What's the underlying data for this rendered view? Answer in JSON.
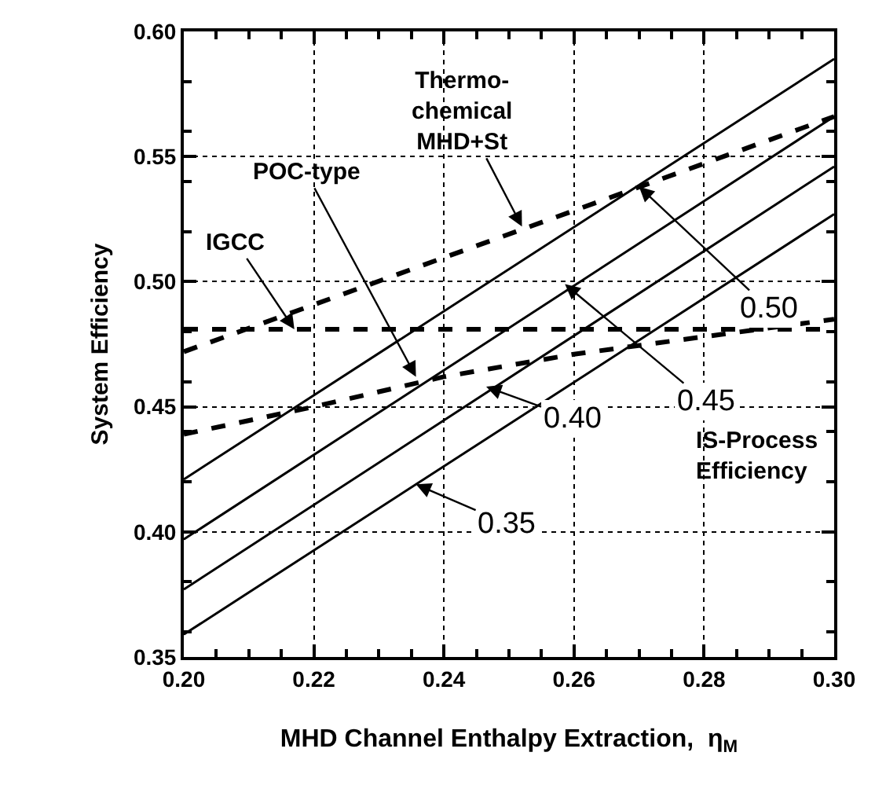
{
  "chart_data": {
    "type": "line",
    "xlabel": "MHD Channel Enthalpy Extraction,  η$_{M}$",
    "ylabel": "System Efficiency",
    "xlim": [
      0.2,
      0.3
    ],
    "xticks": [
      {
        "value": 0.2,
        "label": "0.20"
      },
      {
        "value": 0.22,
        "label": "0.22"
      },
      {
        "value": 0.24,
        "label": "0.24"
      },
      {
        "value": 0.26,
        "label": "0.26"
      },
      {
        "value": 0.28,
        "label": "0.28"
      },
      {
        "value": 0.3,
        "label": "0.30"
      }
    ],
    "ylim": [
      0.35,
      0.6
    ],
    "yticks": [
      {
        "value": 0.35,
        "label": "0.35"
      },
      {
        "value": 0.4,
        "label": "0.40"
      },
      {
        "value": 0.45,
        "label": "0.45"
      },
      {
        "value": 0.5,
        "label": "0.50"
      },
      {
        "value": 0.55,
        "label": "0.55"
      },
      {
        "value": 0.6,
        "label": "0.60"
      }
    ],
    "grid": true,
    "marker": "none",
    "series": [
      {
        "color": "#000000",
        "line_style": "solid",
        "x": [
          0.2,
          0.3
        ],
        "values": [
          0.421,
          0.589
        ]
      },
      {
        "color": "#000000",
        "line_style": "solid",
        "x": [
          0.2,
          0.3
        ],
        "values": [
          0.397,
          0.566
        ]
      },
      {
        "color": "#000000",
        "line_style": "solid",
        "x": [
          0.2,
          0.3
        ],
        "values": [
          0.377,
          0.546
        ]
      },
      {
        "color": "#000000",
        "line_style": "solid",
        "x": [
          0.2,
          0.3
        ],
        "values": [
          0.359,
          0.527
        ]
      },
      {
        "color": "#000000",
        "line_style": "dashed",
        "x": [
          0.2,
          0.3
        ],
        "values": [
          0.472,
          0.566
        ]
      },
      {
        "color": "#000000",
        "line_style": "dashed",
        "x": [
          0.2,
          0.3
        ],
        "values": [
          0.481,
          0.481
        ]
      },
      {
        "color": "#000000",
        "line_style": "dashed",
        "x": [
          0.2,
          0.22,
          0.24,
          0.26,
          0.28,
          0.3
        ],
        "values": [
          0.439,
          0.45,
          0.462,
          0.471,
          0.478,
          0.485
        ]
      }
    ],
    "annotations": [
      {
        "text": "Thermo-\nchemical\nMHD+St",
        "x": 0.252,
        "y": 0.522
      },
      {
        "text": "POC-type",
        "x": 0.2357,
        "y": 0.462
      },
      {
        "text": "IGCC",
        "x": 0.217,
        "y": 0.481
      },
      {
        "text": "0.50",
        "x": 0.27,
        "y": 0.538
      },
      {
        "text": "0.45",
        "x": 0.2586,
        "y": 0.499
      },
      {
        "text": "0.40",
        "x": 0.2465,
        "y": 0.458
      },
      {
        "text": "0.35",
        "x": 0.2357,
        "y": 0.419
      },
      "IS-Process\nEfficiency"
    ]
  }
}
